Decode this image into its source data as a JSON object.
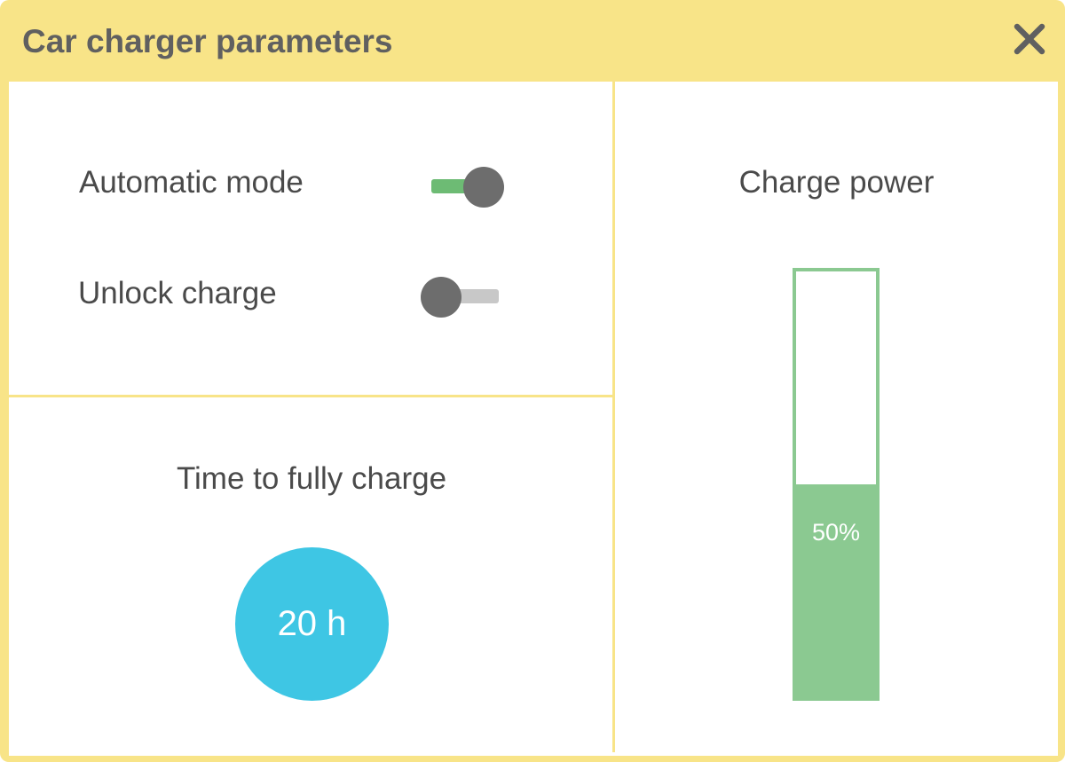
{
  "dialog": {
    "title": "Car charger parameters",
    "close_icon": "close-icon",
    "background_color": "#f8e488"
  },
  "settings": {
    "automatic_mode": {
      "label": "Automatic mode",
      "enabled": true,
      "track_color": "#6dbb74"
    },
    "unlock_charge": {
      "label": "Unlock charge",
      "enabled": false,
      "track_color": "#c8c8c8"
    }
  },
  "time_to_charge": {
    "label": "Time to fully charge",
    "value": "20 h",
    "circle_color": "#3ec6e4"
  },
  "charge_power": {
    "label": "Charge power",
    "level": 0.5,
    "level_text": "50%",
    "bar_color": "#8bc991"
  }
}
